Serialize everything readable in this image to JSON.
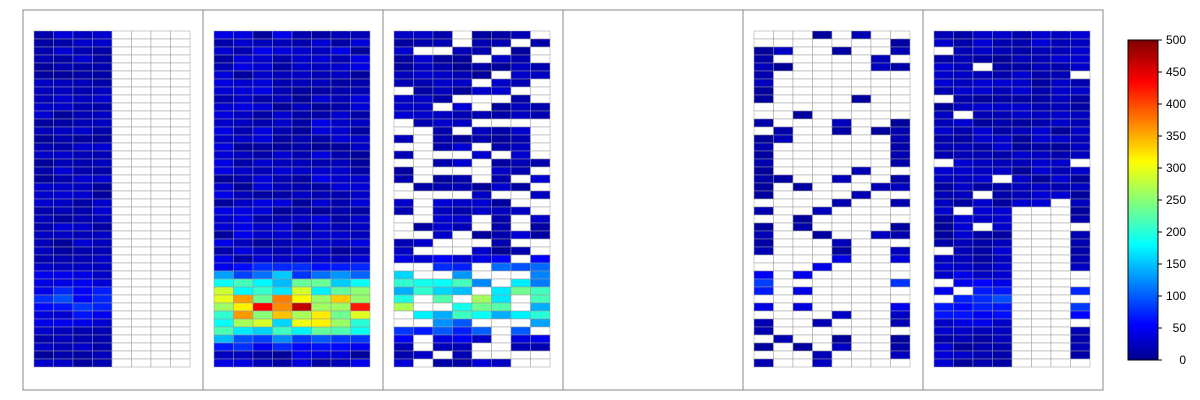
{
  "chart_data": {
    "type": "heatmap",
    "title": "",
    "xlabel": "",
    "ylabel": "",
    "panels": [
      {
        "name": "",
        "cols": 8,
        "rows": 42,
        "bottom_highlight": {
          "row": 33,
          "intensity": 100
        }
      },
      {
        "name": "",
        "cols": 8,
        "rows": 42,
        "bottom_highlight": {
          "row": 34,
          "intensity": 480
        }
      },
      {
        "name": "",
        "cols": 8,
        "rows": 42,
        "bottom_highlight": {
          "row": 33,
          "intensity": 330
        }
      },
      {
        "name": "",
        "cols": 8,
        "rows": 0
      },
      {
        "name": "",
        "cols": 8,
        "rows": 42,
        "bottom_highlight": {
          "row": 31,
          "intensity": 90
        }
      },
      {
        "name": "",
        "cols": 8,
        "rows": 42,
        "bottom_highlight": {
          "row": 33,
          "intensity": 100
        }
      }
    ],
    "colorbar": {
      "min": 0,
      "max": 500,
      "tick_labels": [
        "0",
        "50",
        "100",
        "150",
        "200",
        "250",
        "300",
        "350",
        "400",
        "450",
        "500"
      ],
      "colormap": "jet"
    }
  }
}
